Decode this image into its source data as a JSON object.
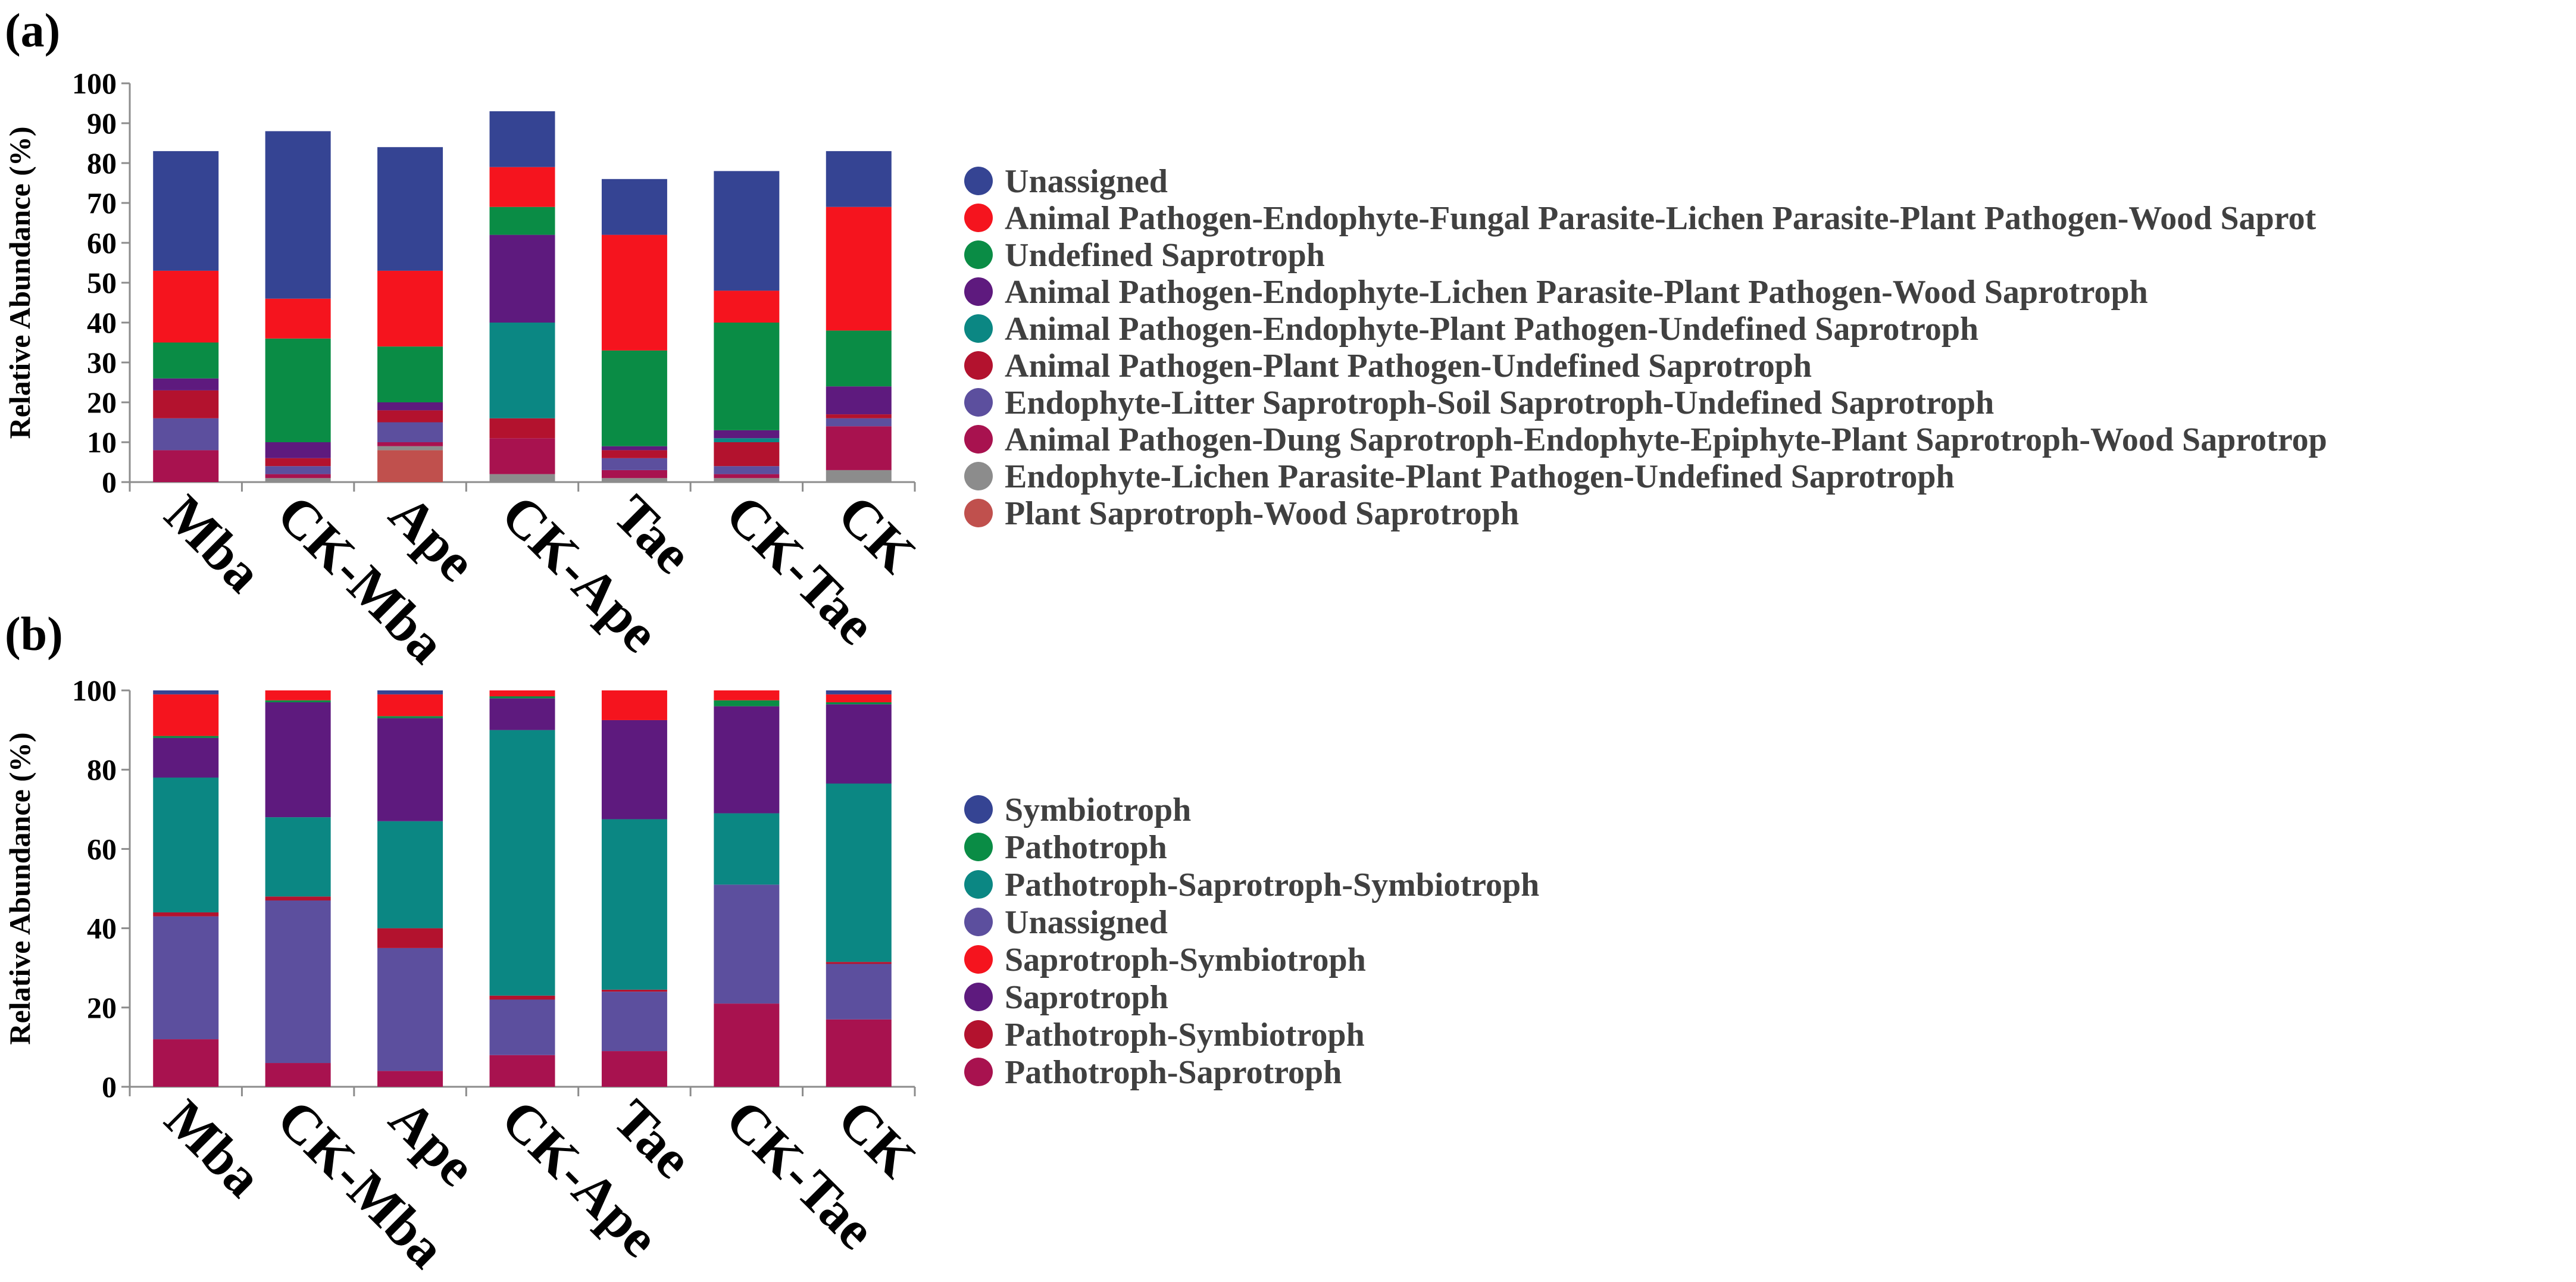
{
  "chart_data": [
    {
      "panel": "(a)",
      "type": "bar",
      "stacked": true,
      "categories": [
        "Mba",
        "CK-Mba",
        "Ape",
        "CK-Ape",
        "Tae",
        "CK-Tae",
        "CK"
      ],
      "ylabel": "Relative Abundance (%)",
      "ylim": [
        0,
        100
      ],
      "yticks": [
        0,
        10,
        20,
        30,
        40,
        50,
        60,
        70,
        80,
        90,
        100
      ],
      "legend_position": "right",
      "series": [
        {
          "name": "Plant Saprotroph-Wood Saprotroph",
          "color": "#c0504d",
          "values": [
            0,
            0,
            8,
            0,
            0,
            0,
            0
          ]
        },
        {
          "name": "Endophyte-Lichen Parasite-Plant Pathogen-Undefined Saprotroph",
          "color": "#8c8c8c",
          "values": [
            0,
            1,
            1,
            2,
            1,
            1,
            3
          ]
        },
        {
          "name": "Animal Pathogen-Dung Saprotroph-Endophyte-Epiphyte-Plant Saprotroph-Wood Saprotrop",
          "color": "#a8124f",
          "values": [
            8,
            1,
            1,
            9,
            2,
            1,
            11
          ]
        },
        {
          "name": "Endophyte-Litter Saprotroph-Soil Saprotroph-Undefined Saprotroph",
          "color": "#5c4f9e",
          "values": [
            8,
            2,
            5,
            0,
            3,
            2,
            2
          ]
        },
        {
          "name": "Animal Pathogen-Plant Pathogen-Undefined Saprotroph",
          "color": "#b3122e",
          "values": [
            7,
            2,
            3,
            5,
            2,
            6,
            1
          ]
        },
        {
          "name": "Animal Pathogen-Endophyte-Plant Pathogen-Undefined Saprotroph",
          "color": "#0b8783",
          "values": [
            0,
            0,
            0,
            24,
            0,
            1,
            0
          ]
        },
        {
          "name": "Animal Pathogen-Endophyte-Lichen Parasite-Plant Pathogen-Wood Saprotroph",
          "color": "#5e1a7e",
          "values": [
            3,
            4,
            2,
            22,
            1,
            2,
            7
          ]
        },
        {
          "name": "Undefined Saprotroph",
          "color": "#0a8c45",
          "values": [
            9,
            26,
            14,
            7,
            24,
            27,
            14
          ]
        },
        {
          "name": "Animal Pathogen-Endophyte-Fungal Parasite-Lichen Parasite-Plant Pathogen-Wood Saprot",
          "color": "#f5141e",
          "values": [
            18,
            10,
            19,
            10,
            29,
            8,
            31
          ]
        },
        {
          "name": "Unassigned",
          "color": "#354493",
          "values": [
            30,
            42,
            31,
            14,
            14,
            30,
            14
          ]
        }
      ],
      "legend_order": [
        "Unassigned",
        "Animal Pathogen-Endophyte-Fungal Parasite-Lichen Parasite-Plant Pathogen-Wood Saprot",
        "Undefined Saprotroph",
        "Animal Pathogen-Endophyte-Lichen Parasite-Plant Pathogen-Wood Saprotroph",
        "Animal Pathogen-Endophyte-Plant Pathogen-Undefined Saprotroph",
        "Animal Pathogen-Plant Pathogen-Undefined Saprotroph",
        "Endophyte-Litter Saprotroph-Soil Saprotroph-Undefined Saprotroph",
        "Animal Pathogen-Dung Saprotroph-Endophyte-Epiphyte-Plant Saprotroph-Wood Saprotrop",
        "Endophyte-Lichen Parasite-Plant Pathogen-Undefined Saprotroph",
        "Plant Saprotroph-Wood Saprotroph"
      ]
    },
    {
      "panel": "(b)",
      "type": "bar",
      "stacked": true,
      "categories": [
        "Mba",
        "CK-Mba",
        "Ape",
        "CK-Ape",
        "Tae",
        "CK-Tae",
        "CK"
      ],
      "ylabel": "Relative Abundance (%)",
      "ylim": [
        0,
        100
      ],
      "yticks": [
        0,
        20,
        40,
        60,
        80,
        100
      ],
      "legend_position": "right",
      "series": [
        {
          "name": "Pathotroph-Saprotroph",
          "color": "#a8124f",
          "values": [
            12,
            6,
            4,
            8,
            9,
            21,
            17
          ]
        },
        {
          "name": "Unassigned",
          "color": "#5c4f9e",
          "values": [
            31,
            41,
            31,
            14,
            15,
            30,
            14
          ]
        },
        {
          "name": "Pathotroph-Symbiotroph",
          "color": "#b3122e",
          "values": [
            1,
            1,
            5,
            1,
            0.5,
            0,
            0.5
          ]
        },
        {
          "name": "Pathotroph-Saprotroph-Symbiotroph",
          "color": "#0b8783",
          "values": [
            34,
            20,
            27,
            67,
            43,
            18,
            45
          ]
        },
        {
          "name": "Saprotroph",
          "color": "#5e1a7e",
          "values": [
            10,
            29,
            26,
            8,
            25,
            27,
            20
          ]
        },
        {
          "name": "Pathotroph",
          "color": "#0a8c45",
          "values": [
            0.5,
            0.5,
            0.5,
            0.5,
            0,
            1.5,
            0.5
          ]
        },
        {
          "name": "Saprotroph-Symbiotroph",
          "color": "#f5141e",
          "values": [
            10.5,
            2.5,
            5.5,
            1.5,
            7.5,
            2.5,
            2
          ]
        },
        {
          "name": "Symbiotroph",
          "color": "#354493",
          "values": [
            1,
            0,
            1,
            0,
            0,
            0,
            1
          ]
        }
      ],
      "legend_order": [
        "Symbiotroph",
        "Pathotroph",
        "Pathotroph-Saprotroph-Symbiotroph",
        "Unassigned",
        "Saprotroph-Symbiotroph",
        "Saprotroph",
        "Pathotroph-Symbiotroph",
        "Pathotroph-Saprotroph"
      ]
    }
  ]
}
